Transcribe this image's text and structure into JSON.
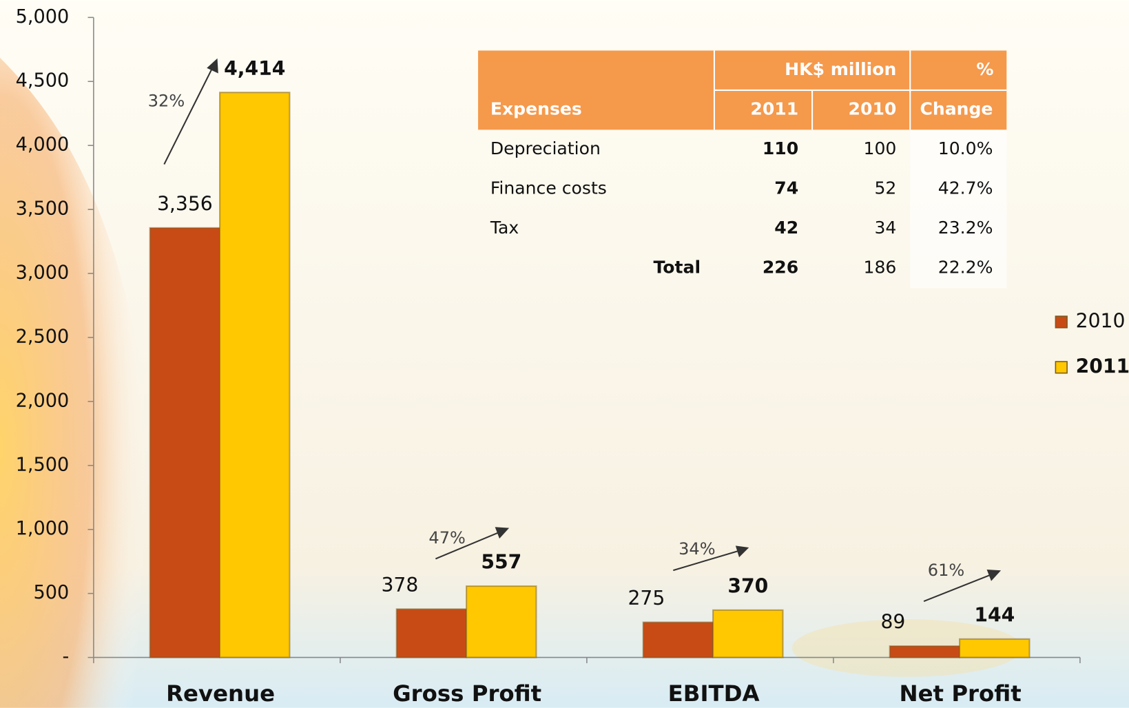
{
  "chart_data": {
    "type": "bar",
    "categories": [
      "Revenue",
      "Gross Profit",
      "EBITDA",
      "Net Profit"
    ],
    "series": [
      {
        "name": "2010",
        "color": "#c84b16",
        "values": [
          3356,
          378,
          275,
          89
        ],
        "value_labels": [
          "3,356",
          "378",
          "275",
          "89"
        ]
      },
      {
        "name": "2011",
        "color": "#ffc800",
        "values": [
          4414,
          557,
          370,
          144
        ],
        "value_labels": [
          "4,414",
          "557",
          "370",
          "144"
        ]
      }
    ],
    "annotations": [
      "32%",
      "47%",
      "34%",
      "61%"
    ],
    "ylim": [
      0,
      5000
    ],
    "yticks": [
      {
        "value": 0,
        "label": "-"
      },
      {
        "value": 500,
        "label": "500"
      },
      {
        "value": 1000,
        "label": "1,000"
      },
      {
        "value": 1500,
        "label": "1,500"
      },
      {
        "value": 2000,
        "label": "2,000"
      },
      {
        "value": 2500,
        "label": "2,500"
      },
      {
        "value": 3000,
        "label": "3,000"
      },
      {
        "value": 3500,
        "label": "3,500"
      },
      {
        "value": 4000,
        "label": "4,000"
      },
      {
        "value": 4500,
        "label": "4,500"
      },
      {
        "value": 5000,
        "label": "5,000"
      }
    ],
    "grid": false,
    "legend": "right"
  },
  "table": {
    "group_header": [
      "HK$ million",
      "%"
    ],
    "columns": [
      "Expenses",
      "2011",
      "2010",
      "Change"
    ],
    "rows": [
      [
        "Depreciation",
        "110",
        "100",
        "10.0%"
      ],
      [
        "Finance costs",
        "74",
        "52",
        "42.7%"
      ],
      [
        "Tax",
        "42",
        "34",
        "23.2%"
      ]
    ],
    "total": [
      "Total",
      "226",
      "186",
      "22.2%"
    ]
  }
}
